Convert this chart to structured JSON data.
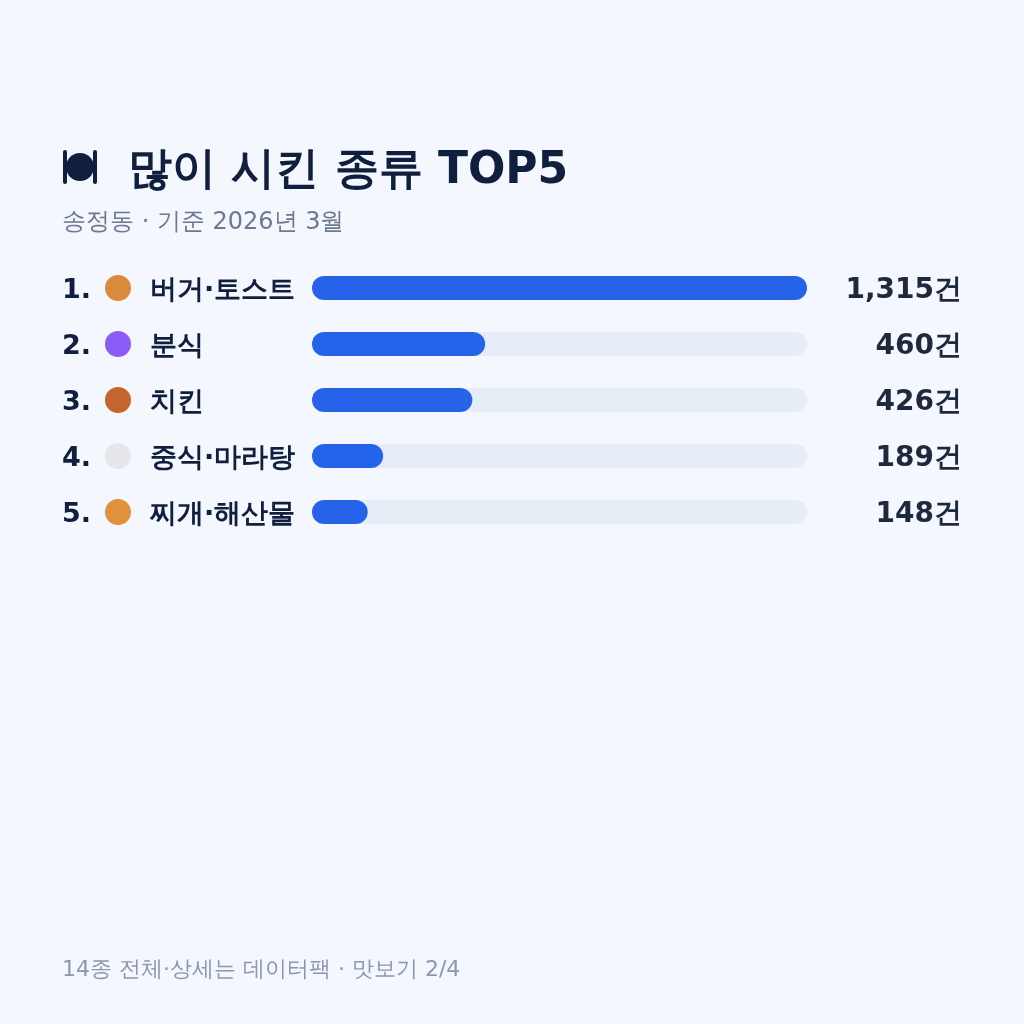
{
  "chart_data": {
    "type": "bar",
    "orientation": "horizontal",
    "title": "많이 시킨 종류 TOP5",
    "subtitle": "송정동 · 기준 2026년 3월",
    "categories": [
      "1. 버거·토스트",
      "2. 분식",
      "3. 치킨",
      "4. 중식·마라탕",
      "5. 찌개·해산물"
    ],
    "values": [
      1315,
      460,
      426,
      189,
      148
    ],
    "value_labels": [
      "1,315건",
      "460건",
      "426건",
      "189건",
      "148건"
    ],
    "color": "#2563eb",
    "annotations": [
      "14종 전체·상세는 데이터팩 · 맛보기 2/4"
    ]
  }
}
